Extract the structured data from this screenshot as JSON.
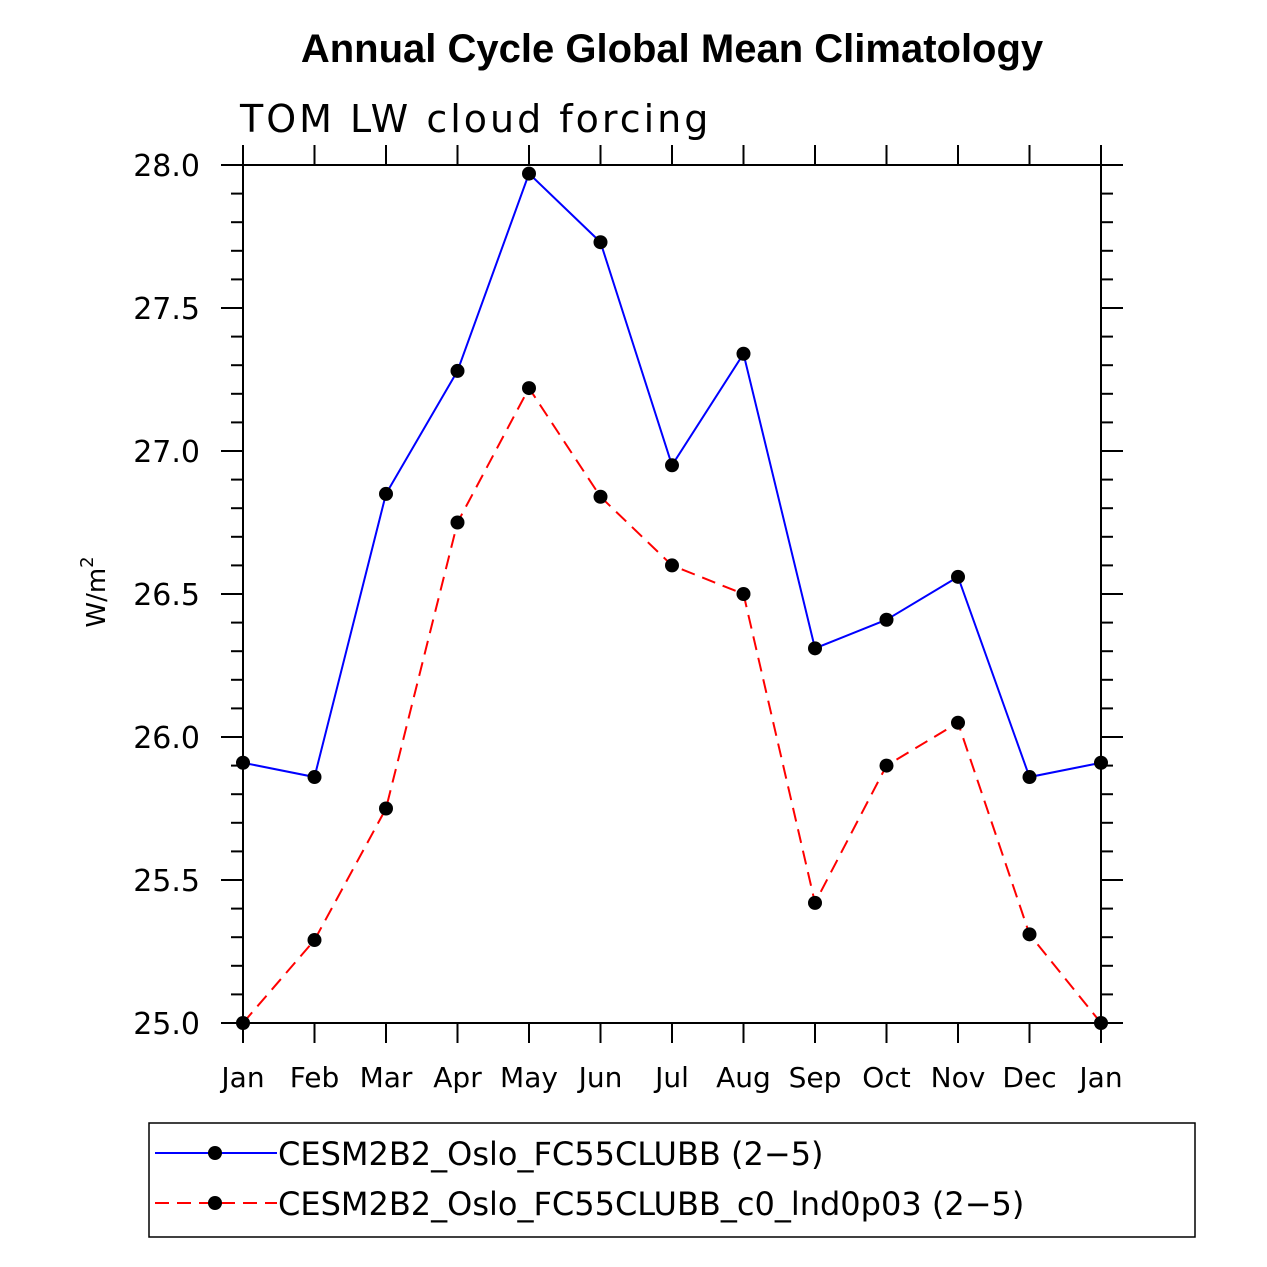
{
  "chart_data": {
    "type": "line",
    "title": "Annual Cycle Global Mean Climatology",
    "subtitle": "TOM LW cloud forcing",
    "ylabel": "W/m",
    "ylabel_superscript": "2",
    "xlabel": "",
    "categories": [
      "Jan",
      "Feb",
      "Mar",
      "Apr",
      "May",
      "Jun",
      "Jul",
      "Aug",
      "Sep",
      "Oct",
      "Nov",
      "Dec",
      "Jan"
    ],
    "ylim": [
      25.0,
      28.0
    ],
    "yticks": [
      "25.0",
      "25.5",
      "26.0",
      "26.5",
      "27.0",
      "27.5",
      "28.0"
    ],
    "grid": false,
    "legend_position": "bottom",
    "series": [
      {
        "name": "CESM2B2_Oslo_FC55CLUBB (2−5)",
        "color": "#0000ff",
        "style": "solid",
        "values": [
          25.91,
          25.86,
          26.85,
          27.28,
          27.97,
          27.73,
          26.95,
          27.34,
          26.31,
          26.41,
          26.56,
          25.86,
          25.91
        ]
      },
      {
        "name": "CESM2B2_Oslo_FC55CLUBB_c0_lnd0p03 (2−5)",
        "color": "#ff0000",
        "style": "dashed",
        "values": [
          25.0,
          25.29,
          25.75,
          26.75,
          27.22,
          26.84,
          26.6,
          26.5,
          25.42,
          25.9,
          26.05,
          25.31,
          25.0
        ]
      }
    ],
    "marker_color": "#000000"
  }
}
